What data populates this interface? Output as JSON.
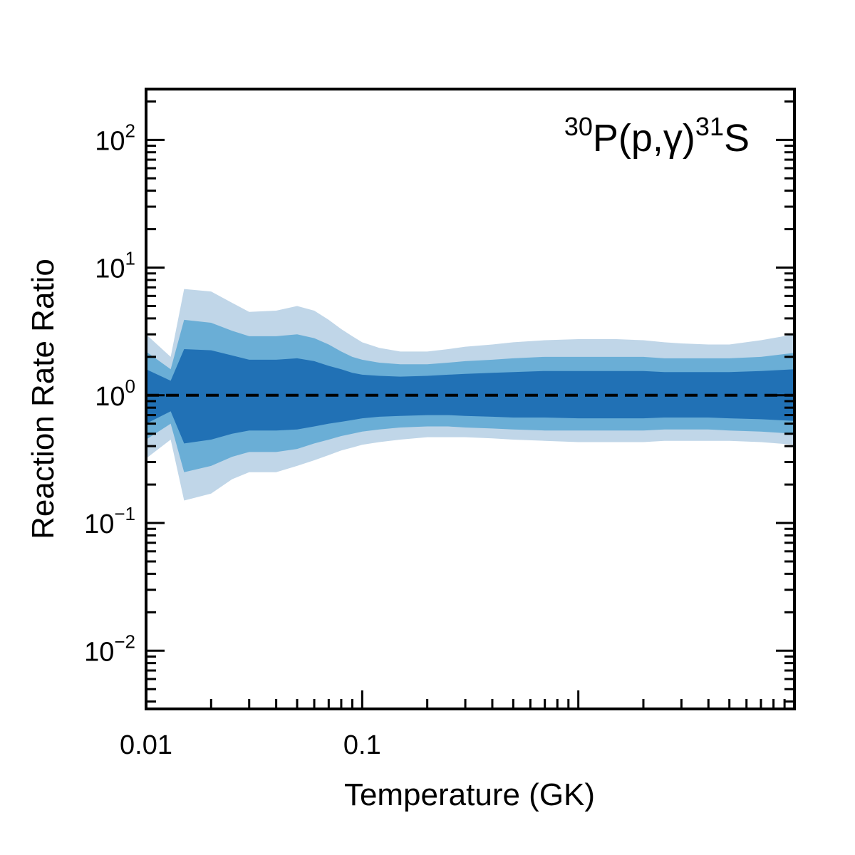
{
  "chart_data": {
    "type": "area",
    "title": "",
    "annotation": {
      "pre_sup": "30",
      "main": "P(p,γ)",
      "mid_sup": "31",
      "post": "S",
      "placement": "top-right"
    },
    "xlabel": "Temperature (GK)",
    "ylabel": "Reaction Rate Ratio",
    "x_scale": "log",
    "y_scale": "log",
    "xlim": [
      0.01,
      10
    ],
    "ylim": [
      0.0035,
      250
    ],
    "x_ticks": [
      {
        "value": 0.01,
        "label": "0.01"
      },
      {
        "value": 0.1,
        "label": "0.1"
      },
      {
        "value": 1,
        "label": ""
      },
      {
        "value": 10,
        "label": ""
      }
    ],
    "y_ticks": [
      {
        "value": 0.01,
        "base": "10",
        "exp": "−2"
      },
      {
        "value": 0.1,
        "base": "10",
        "exp": "−1"
      },
      {
        "value": 1,
        "base": "10",
        "exp": "0"
      },
      {
        "value": 10,
        "base": "10",
        "exp": "1"
      },
      {
        "value": 100,
        "base": "10",
        "exp": "2"
      }
    ],
    "grid": false,
    "legend": "none",
    "reference_line": {
      "y": 1,
      "style": "dashed",
      "color": "#000000"
    },
    "x": [
      0.01,
      0.013,
      0.015,
      0.02,
      0.025,
      0.03,
      0.04,
      0.05,
      0.06,
      0.07,
      0.08,
      0.09,
      0.1,
      0.12,
      0.15,
      0.2,
      0.25,
      0.3,
      0.4,
      0.5,
      0.7,
      1.0,
      1.5,
      2.0,
      2.5,
      3.0,
      4.0,
      5.0,
      7.0,
      10.0
    ],
    "series": [
      {
        "name": "",
        "color": "#c0d6e8",
        "lower": [
          0.32,
          0.45,
          0.15,
          0.17,
          0.22,
          0.25,
          0.25,
          0.28,
          0.31,
          0.34,
          0.37,
          0.39,
          0.41,
          0.43,
          0.45,
          0.47,
          0.47,
          0.47,
          0.46,
          0.45,
          0.44,
          0.43,
          0.43,
          0.43,
          0.44,
          0.44,
          0.44,
          0.44,
          0.43,
          0.41
        ],
        "upper": [
          3.0,
          2.0,
          6.8,
          6.5,
          5.3,
          4.5,
          4.6,
          5.0,
          4.6,
          3.9,
          3.3,
          2.9,
          2.6,
          2.35,
          2.2,
          2.2,
          2.3,
          2.4,
          2.5,
          2.6,
          2.7,
          2.75,
          2.75,
          2.7,
          2.6,
          2.55,
          2.5,
          2.5,
          2.7,
          3.0
        ]
      },
      {
        "name": "",
        "color": "#6aaed6",
        "lower": [
          0.45,
          0.6,
          0.25,
          0.28,
          0.33,
          0.36,
          0.36,
          0.38,
          0.42,
          0.45,
          0.48,
          0.5,
          0.52,
          0.54,
          0.56,
          0.57,
          0.57,
          0.56,
          0.55,
          0.54,
          0.53,
          0.53,
          0.53,
          0.53,
          0.54,
          0.54,
          0.54,
          0.53,
          0.52,
          0.5
        ],
        "upper": [
          2.2,
          1.6,
          3.9,
          3.7,
          3.2,
          2.9,
          2.9,
          3.0,
          2.8,
          2.5,
          2.2,
          2.0,
          1.9,
          1.8,
          1.75,
          1.75,
          1.8,
          1.85,
          1.9,
          1.95,
          2.0,
          2.0,
          2.0,
          2.0,
          1.95,
          1.95,
          1.95,
          1.95,
          2.0,
          2.15
        ]
      },
      {
        "name": "",
        "color": "#2171b5",
        "lower": [
          0.6,
          0.75,
          0.42,
          0.45,
          0.5,
          0.53,
          0.53,
          0.54,
          0.57,
          0.6,
          0.62,
          0.64,
          0.66,
          0.68,
          0.69,
          0.7,
          0.7,
          0.69,
          0.68,
          0.67,
          0.67,
          0.66,
          0.66,
          0.66,
          0.67,
          0.67,
          0.67,
          0.66,
          0.65,
          0.63
        ],
        "upper": [
          1.6,
          1.3,
          2.3,
          2.25,
          2.05,
          1.9,
          1.9,
          1.95,
          1.85,
          1.7,
          1.6,
          1.5,
          1.45,
          1.42,
          1.4,
          1.42,
          1.45,
          1.47,
          1.5,
          1.52,
          1.55,
          1.55,
          1.55,
          1.55,
          1.52,
          1.52,
          1.52,
          1.52,
          1.55,
          1.6
        ]
      }
    ]
  }
}
